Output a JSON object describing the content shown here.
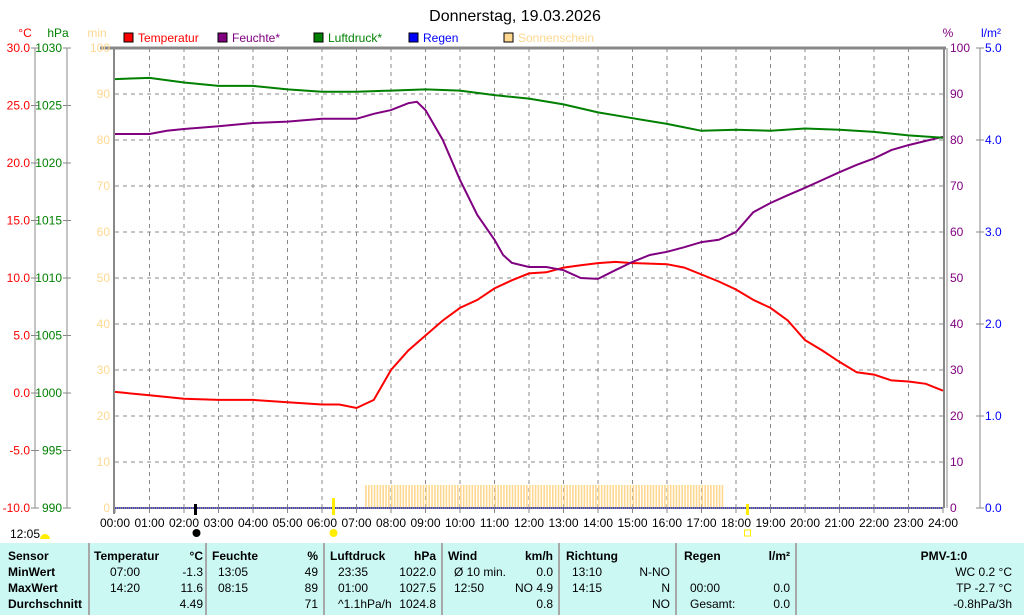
{
  "title": "Donnerstag, 19.03.2026",
  "axis_units": {
    "temp": "°C",
    "pressure": "hPa",
    "sun": "min",
    "humidity": "%",
    "rain": "l/m²"
  },
  "legend": [
    {
      "label": "Temperatur",
      "color": "#ff0000"
    },
    {
      "label": "Feuchte*",
      "color": "#800080"
    },
    {
      "label": "Luftdruck*",
      "color": "#008000"
    },
    {
      "label": "Regen",
      "color": "#0000ff"
    },
    {
      "label": "Sonnenschein",
      "color": "#ffd890"
    }
  ],
  "sun_events": {
    "time_label": "12:05",
    "moon_time": "02:20",
    "sunrise": "06:20",
    "sunset": "18:20"
  },
  "chart_data": {
    "type": "line",
    "title": "Donnerstag, 19.03.2026",
    "x_ticks": [
      "00:00",
      "01:00",
      "02:00",
      "03:00",
      "04:00",
      "05:00",
      "06:00",
      "07:00",
      "08:00",
      "09:00",
      "10:00",
      "11:00",
      "12:00",
      "13:00",
      "14:00",
      "15:00",
      "16:00",
      "17:00",
      "18:00",
      "19:00",
      "20:00",
      "21:00",
      "22:00",
      "23:00",
      "24:00"
    ],
    "xlim": [
      0,
      24
    ],
    "axes": {
      "temp": {
        "ylim": [
          -10,
          30
        ],
        "ticks": [
          "30.0",
          "25.0",
          "20.0",
          "15.0",
          "10.0",
          "5.0",
          "0.0",
          "-5.0",
          "-10.0"
        ]
      },
      "pressure": {
        "ylim": [
          990,
          1030
        ],
        "ticks": [
          "1030",
          "1025",
          "1020",
          "1015",
          "1010",
          "1005",
          "1000",
          "995",
          "990"
        ]
      },
      "sun": {
        "ylim": [
          0,
          100
        ],
        "ticks": [
          "100",
          "90",
          "80",
          "70",
          "60",
          "50",
          "40",
          "30",
          "20",
          "10",
          "0"
        ]
      },
      "humidity": {
        "ylim": [
          0,
          100
        ],
        "ticks": [
          "100",
          "90",
          "80",
          "70",
          "60",
          "50",
          "40",
          "30",
          "20",
          "10",
          "0"
        ]
      },
      "rain": {
        "ylim": [
          0,
          5
        ],
        "ticks": [
          "5.0",
          "4.0",
          "3.0",
          "2.0",
          "1.0",
          "0.0"
        ]
      }
    },
    "grid": true,
    "series": [
      {
        "name": "Temperatur",
        "axis": "temp",
        "color": "#ff0000",
        "x": [
          0,
          1,
          2,
          3,
          4,
          5,
          6,
          6.5,
          7,
          7.5,
          8,
          8.5,
          9,
          9.5,
          10,
          10.5,
          11,
          11.5,
          12,
          12.5,
          13,
          13.5,
          14,
          14.5,
          15,
          16,
          16.5,
          17,
          17.5,
          18,
          18.5,
          19,
          19.5,
          20,
          20.5,
          21,
          21.5,
          22,
          22.5,
          23,
          23.5,
          24
        ],
        "values": [
          0.1,
          -0.2,
          -0.5,
          -0.6,
          -0.6,
          -0.8,
          -1.0,
          -1.0,
          -1.3,
          -0.6,
          2.0,
          3.7,
          5.0,
          6.3,
          7.4,
          8.1,
          9.1,
          9.8,
          10.4,
          10.5,
          10.9,
          11.1,
          11.3,
          11.4,
          11.3,
          11.2,
          10.9,
          10.3,
          9.7,
          9.0,
          8.1,
          7.4,
          6.3,
          4.6,
          3.7,
          2.7,
          1.8,
          1.6,
          1.1,
          1.0,
          0.8,
          0.2
        ]
      },
      {
        "name": "Feuchte*",
        "axis": "humidity",
        "color": "#800080",
        "x": [
          0,
          1,
          1.5,
          2,
          3,
          4,
          5,
          6,
          7,
          7.5,
          8,
          8.5,
          8.75,
          9,
          9.5,
          10,
          10.5,
          11,
          11.25,
          11.5,
          12,
          12.5,
          13,
          13.5,
          14,
          14.5,
          15,
          15.5,
          16,
          16.5,
          17,
          17.5,
          18,
          18.5,
          19,
          19.5,
          20,
          20.5,
          21,
          21.5,
          22,
          22.5,
          23,
          23.5,
          24
        ],
        "values": [
          81.3,
          81.3,
          82,
          82.4,
          83,
          83.7,
          84,
          84.6,
          84.6,
          85.7,
          86.5,
          88,
          88.3,
          86.5,
          80,
          71.3,
          63.7,
          58.3,
          55,
          53.3,
          52.4,
          52.4,
          51.7,
          50,
          49.8,
          51.7,
          53.5,
          55,
          55.7,
          56.7,
          57.8,
          58.3,
          60,
          64.3,
          66.3,
          68,
          69.6,
          71.3,
          73,
          74.6,
          76,
          77.8,
          78.9,
          79.8,
          80.7
        ]
      },
      {
        "name": "Luftdruck*",
        "axis": "pressure",
        "color": "#008000",
        "x": [
          0,
          1,
          2,
          3,
          4,
          5,
          6,
          7,
          8,
          9,
          10,
          11,
          12,
          13,
          14,
          15,
          16,
          17,
          18,
          19,
          20,
          21,
          22,
          23,
          24
        ],
        "values": [
          1027.3,
          1027.4,
          1027.0,
          1026.7,
          1026.7,
          1026.4,
          1026.2,
          1026.2,
          1026.3,
          1026.4,
          1026.3,
          1025.9,
          1025.6,
          1025.1,
          1024.4,
          1023.9,
          1023.4,
          1022.8,
          1022.9,
          1022.8,
          1023.0,
          1022.9,
          1022.7,
          1022.4,
          1022.2
        ]
      },
      {
        "name": "Regen",
        "axis": "rain",
        "color": "#0000ff",
        "x": [
          0,
          24
        ],
        "values": [
          0,
          0
        ]
      }
    ],
    "sunshine": {
      "axis": "sun",
      "start_hour": 7.25,
      "end_hour": 17.6,
      "interval_min": 5,
      "value_min": 5
    }
  },
  "table": {
    "columns": [
      {
        "header": "Sensor",
        "rows": [
          "MinWert",
          "MaxWert",
          "Durchschnitt"
        ]
      },
      {
        "header": "Temperatur",
        "unit": "°C",
        "times": [
          "07:00",
          "14:20",
          ""
        ],
        "values": [
          "-1.3",
          "11.6",
          "4.49"
        ]
      },
      {
        "header": "Feuchte",
        "unit": "%",
        "times": [
          "13:05",
          "08:15",
          ""
        ],
        "values": [
          "49",
          "89",
          "71"
        ]
      },
      {
        "header": "Luftdruck",
        "unit": "hPa",
        "times": [
          "23:35",
          "01:00",
          "^1.1hPa/h"
        ],
        "values": [
          "1022.0",
          "1027.5",
          "1024.8"
        ]
      },
      {
        "header": "Wind",
        "unit": "km/h",
        "times": [
          "Ø 10 min.",
          "12:50",
          ""
        ],
        "values": [
          "0.0",
          "NO 4.9",
          "0.8"
        ]
      },
      {
        "header": "Richtung",
        "times": [
          "13:10",
          "14:15",
          ""
        ],
        "values": [
          "N-NO",
          "N",
          "NO"
        ]
      },
      {
        "header": "Regen",
        "unit": "l/m²",
        "times": [
          "",
          "00:00",
          "Gesamt:"
        ],
        "values": [
          "",
          "0.0",
          "0.0"
        ]
      },
      {
        "header": "PMV-1:0",
        "lines": [
          "WC 0.2 °C",
          "TP -2.7 °C",
          "-0.8hPa/3h"
        ]
      }
    ]
  }
}
